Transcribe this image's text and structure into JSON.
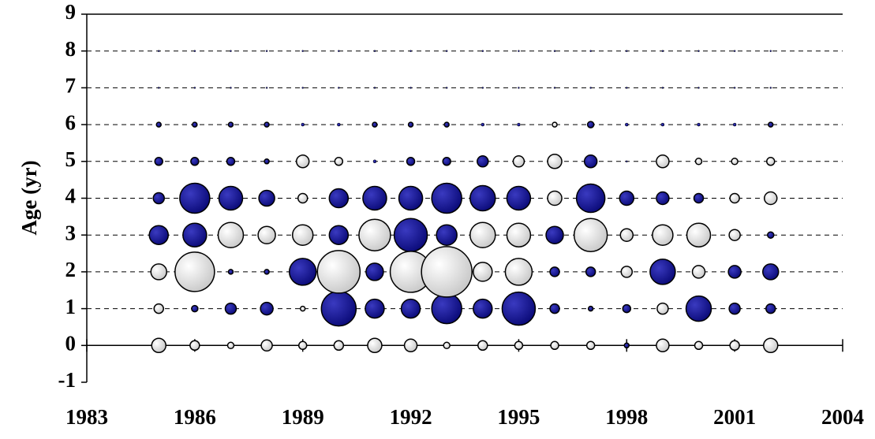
{
  "chart_data": {
    "type": "bubble",
    "y_label": "Age (yr)",
    "xlim": [
      1983,
      2004
    ],
    "xticks": [
      1983,
      1986,
      1989,
      1992,
      1995,
      1998,
      2001,
      2004
    ],
    "ylim": [
      -1,
      9
    ],
    "yticks": [
      -1,
      0,
      1,
      2,
      3,
      4,
      5,
      6,
      7,
      8,
      9
    ],
    "grid": true,
    "series": [
      {
        "color": "#0a0a78",
        "points": [
          [
            1985,
            3,
            12
          ],
          [
            1985,
            4,
            7
          ],
          [
            1985,
            5,
            5
          ],
          [
            1985,
            6,
            3
          ],
          [
            1985,
            7,
            1
          ],
          [
            1985,
            8,
            1
          ],
          [
            1986,
            1,
            4
          ],
          [
            1986,
            3,
            15
          ],
          [
            1986,
            4,
            19
          ],
          [
            1986,
            5,
            5
          ],
          [
            1986,
            6,
            3
          ],
          [
            1986,
            7,
            1
          ],
          [
            1986,
            8,
            1
          ],
          [
            1987,
            1,
            7
          ],
          [
            1987,
            2,
            3
          ],
          [
            1987,
            4,
            15
          ],
          [
            1987,
            5,
            5
          ],
          [
            1987,
            6,
            3
          ],
          [
            1987,
            7,
            1
          ],
          [
            1987,
            8,
            1
          ],
          [
            1988,
            1,
            8
          ],
          [
            1988,
            2,
            3
          ],
          [
            1988,
            4,
            10
          ],
          [
            1988,
            5,
            3
          ],
          [
            1988,
            6,
            3
          ],
          [
            1988,
            7,
            1
          ],
          [
            1988,
            8,
            1
          ],
          [
            1989,
            2,
            17
          ],
          [
            1989,
            6,
            2
          ],
          [
            1989,
            7,
            1
          ],
          [
            1989,
            8,
            1
          ],
          [
            1990,
            1,
            22
          ],
          [
            1990,
            3,
            12
          ],
          [
            1990,
            4,
            12
          ],
          [
            1990,
            6,
            2
          ],
          [
            1990,
            7,
            1
          ],
          [
            1990,
            8,
            1
          ],
          [
            1991,
            1,
            12
          ],
          [
            1991,
            2,
            11
          ],
          [
            1991,
            4,
            15
          ],
          [
            1991,
            5,
            2
          ],
          [
            1991,
            6,
            3
          ],
          [
            1991,
            7,
            1
          ],
          [
            1991,
            8,
            1
          ],
          [
            1992,
            1,
            12
          ],
          [
            1992,
            3,
            21
          ],
          [
            1992,
            4,
            15
          ],
          [
            1992,
            5,
            5
          ],
          [
            1992,
            6,
            3
          ],
          [
            1992,
            7,
            1
          ],
          [
            1992,
            8,
            1
          ],
          [
            1993,
            1,
            19
          ],
          [
            1993,
            3,
            13
          ],
          [
            1993,
            4,
            19
          ],
          [
            1993,
            5,
            5
          ],
          [
            1993,
            6,
            3
          ],
          [
            1993,
            7,
            1
          ],
          [
            1993,
            8,
            1
          ],
          [
            1994,
            1,
            12
          ],
          [
            1994,
            4,
            16
          ],
          [
            1994,
            5,
            7
          ],
          [
            1994,
            6,
            2
          ],
          [
            1994,
            7,
            1
          ],
          [
            1994,
            8,
            1
          ],
          [
            1995,
            1,
            21
          ],
          [
            1995,
            4,
            15
          ],
          [
            1995,
            6,
            2
          ],
          [
            1995,
            7,
            1
          ],
          [
            1995,
            8,
            1
          ],
          [
            1996,
            1,
            6
          ],
          [
            1996,
            2,
            6
          ],
          [
            1996,
            3,
            11
          ],
          [
            1996,
            7,
            1
          ],
          [
            1996,
            8,
            1
          ],
          [
            1997,
            1,
            3
          ],
          [
            1997,
            2,
            6
          ],
          [
            1997,
            4,
            18
          ],
          [
            1997,
            5,
            8
          ],
          [
            1997,
            6,
            4
          ],
          [
            1997,
            7,
            1
          ],
          [
            1997,
            8,
            1
          ],
          [
            1998,
            0,
            3
          ],
          [
            1998,
            1,
            5
          ],
          [
            1998,
            4,
            9
          ],
          [
            1998,
            5,
            1
          ],
          [
            1998,
            6,
            2
          ],
          [
            1998,
            7,
            1
          ],
          [
            1998,
            8,
            1
          ],
          [
            1999,
            2,
            16
          ],
          [
            1999,
            4,
            8
          ],
          [
            1999,
            6,
            2
          ],
          [
            1999,
            7,
            1
          ],
          [
            1999,
            8,
            1
          ],
          [
            2000,
            1,
            16
          ],
          [
            2000,
            4,
            6
          ],
          [
            2000,
            6,
            2
          ],
          [
            2000,
            7,
            1
          ],
          [
            2000,
            8,
            1
          ],
          [
            2001,
            1,
            7
          ],
          [
            2001,
            2,
            8
          ],
          [
            2001,
            6,
            2
          ],
          [
            2001,
            7,
            1
          ],
          [
            2001,
            8,
            1
          ],
          [
            2002,
            1,
            6
          ],
          [
            2002,
            2,
            10
          ],
          [
            2002,
            3,
            4
          ],
          [
            2002,
            6,
            3
          ],
          [
            2002,
            7,
            1
          ],
          [
            2002,
            8,
            1
          ]
        ]
      },
      {
        "color": "#ffffff",
        "points": [
          [
            1985,
            0,
            9
          ],
          [
            1985,
            1,
            6
          ],
          [
            1985,
            2,
            10
          ],
          [
            1986,
            0,
            6
          ],
          [
            1986,
            2,
            25
          ],
          [
            1987,
            0,
            4
          ],
          [
            1987,
            3,
            16
          ],
          [
            1988,
            0,
            7
          ],
          [
            1988,
            3,
            11
          ],
          [
            1989,
            0,
            5
          ],
          [
            1989,
            1,
            3
          ],
          [
            1989,
            3,
            13
          ],
          [
            1989,
            4,
            6
          ],
          [
            1989,
            5,
            8
          ],
          [
            1990,
            0,
            6
          ],
          [
            1990,
            2,
            27
          ],
          [
            1990,
            5,
            5
          ],
          [
            1991,
            0,
            9
          ],
          [
            1991,
            3,
            20
          ],
          [
            1992,
            0,
            8
          ],
          [
            1992,
            2,
            26
          ],
          [
            1993,
            0,
            4
          ],
          [
            1993,
            2,
            32
          ],
          [
            1994,
            0,
            6
          ],
          [
            1994,
            2,
            12
          ],
          [
            1994,
            3,
            16
          ],
          [
            1995,
            0,
            5
          ],
          [
            1995,
            2,
            17
          ],
          [
            1995,
            3,
            15
          ],
          [
            1995,
            5,
            7
          ],
          [
            1996,
            0,
            5
          ],
          [
            1996,
            4,
            9
          ],
          [
            1996,
            5,
            9
          ],
          [
            1996,
            6,
            3
          ],
          [
            1997,
            0,
            5
          ],
          [
            1997,
            3,
            21
          ],
          [
            1998,
            2,
            7
          ],
          [
            1998,
            3,
            8
          ],
          [
            1999,
            0,
            8
          ],
          [
            1999,
            1,
            7
          ],
          [
            1999,
            3,
            13
          ],
          [
            1999,
            5,
            8
          ],
          [
            2000,
            0,
            5
          ],
          [
            2000,
            2,
            8
          ],
          [
            2000,
            3,
            15
          ],
          [
            2000,
            5,
            4
          ],
          [
            2001,
            0,
            6
          ],
          [
            2001,
            3,
            7
          ],
          [
            2001,
            4,
            6
          ],
          [
            2001,
            5,
            4
          ],
          [
            2002,
            0,
            9
          ],
          [
            2002,
            4,
            8
          ],
          [
            2002,
            5,
            5
          ]
        ]
      }
    ]
  }
}
